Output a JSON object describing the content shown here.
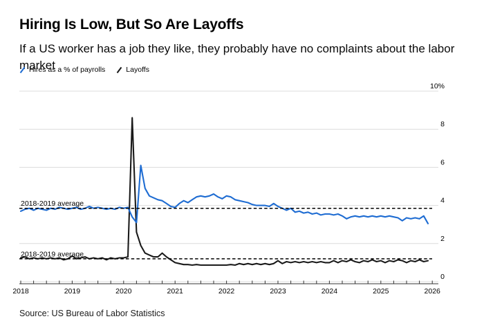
{
  "header": {
    "title": "Hiring Is Low, But So Are Layoffs",
    "subtitle": "If a US worker has a job they like, they probably have no complaints about the labor market"
  },
  "legend": {
    "items": [
      {
        "label": "Hires as a % of payrolls",
        "color": "#1e6cd2"
      },
      {
        "label": "Layoffs",
        "color": "#1a1a1a"
      }
    ]
  },
  "source_note": "Source: US Bureau of Labor Statistics",
  "chart_data": {
    "type": "line",
    "x_unit": "month",
    "x_range": [
      "2018-01",
      "2025-12"
    ],
    "x_ticks": [
      "2018",
      "2019",
      "2020",
      "2021",
      "2022",
      "2023",
      "2024",
      "2025",
      "2026"
    ],
    "y_ticks": [
      {
        "label": "10%",
        "value": 10
      },
      {
        "label": "8",
        "value": 8
      },
      {
        "label": "6",
        "value": 6
      },
      {
        "label": "4",
        "value": 4
      },
      {
        "label": "2",
        "value": 2
      },
      {
        "label": "0",
        "value": 0
      }
    ],
    "ylim": [
      0,
      10
    ],
    "grid": true,
    "legend_position": "top-left",
    "series": [
      {
        "name": "Hires as a % of payrolls",
        "color": "#1e6cd2",
        "values": [
          3.7,
          3.8,
          3.85,
          3.75,
          3.85,
          3.8,
          3.75,
          3.85,
          3.8,
          3.9,
          3.85,
          3.8,
          3.85,
          3.9,
          3.8,
          3.85,
          3.95,
          3.85,
          3.9,
          3.85,
          3.8,
          3.85,
          3.8,
          3.9,
          3.85,
          3.9,
          3.4,
          3.1,
          6.1,
          4.9,
          4.5,
          4.4,
          4.3,
          4.25,
          4.1,
          3.95,
          3.9,
          4.1,
          4.25,
          4.15,
          4.3,
          4.45,
          4.5,
          4.45,
          4.5,
          4.6,
          4.45,
          4.35,
          4.5,
          4.45,
          4.3,
          4.25,
          4.2,
          4.15,
          4.05,
          4.0,
          4.0,
          4.0,
          3.95,
          4.1,
          3.95,
          3.85,
          3.75,
          3.85,
          3.65,
          3.7,
          3.6,
          3.65,
          3.55,
          3.6,
          3.5,
          3.55,
          3.55,
          3.5,
          3.55,
          3.45,
          3.3,
          3.4,
          3.45,
          3.4,
          3.45,
          3.4,
          3.45,
          3.4,
          3.45,
          3.4,
          3.45,
          3.4,
          3.35,
          3.2,
          3.35,
          3.3,
          3.35,
          3.3,
          3.45,
          3.05
        ]
      },
      {
        "name": "Layoffs",
        "color": "#1a1a1a",
        "values": [
          1.25,
          1.3,
          1.2,
          1.25,
          1.2,
          1.25,
          1.2,
          1.25,
          1.2,
          1.25,
          1.15,
          1.2,
          1.35,
          1.2,
          1.25,
          1.3,
          1.2,
          1.25,
          1.2,
          1.25,
          1.15,
          1.25,
          1.2,
          1.25,
          1.25,
          1.3,
          8.6,
          2.6,
          1.9,
          1.5,
          1.4,
          1.3,
          1.3,
          1.5,
          1.3,
          1.15,
          1.0,
          0.95,
          0.9,
          0.9,
          0.87,
          0.9,
          0.87,
          0.87,
          0.87,
          0.87,
          0.87,
          0.87,
          0.87,
          0.9,
          0.87,
          0.95,
          0.9,
          0.95,
          0.9,
          0.95,
          0.9,
          0.95,
          0.9,
          0.95,
          1.1,
          0.95,
          1.05,
          1.0,
          1.05,
          1.0,
          1.05,
          1.0,
          1.05,
          1.0,
          1.05,
          1.0,
          1.0,
          1.1,
          1.0,
          1.1,
          1.05,
          1.15,
          1.05,
          1.0,
          1.1,
          1.05,
          1.15,
          1.05,
          1.1,
          1.0,
          1.1,
          1.05,
          1.15,
          1.1,
          1.0,
          1.1,
          1.05,
          1.15,
          1.05,
          1.1
        ]
      }
    ],
    "reference_lines": [
      {
        "label": "2018-2019 average",
        "series": "Hires as a % of payrolls",
        "value": 3.85
      },
      {
        "label": "2018-2019 average",
        "series": "Layoffs",
        "value": 1.2
      }
    ]
  }
}
